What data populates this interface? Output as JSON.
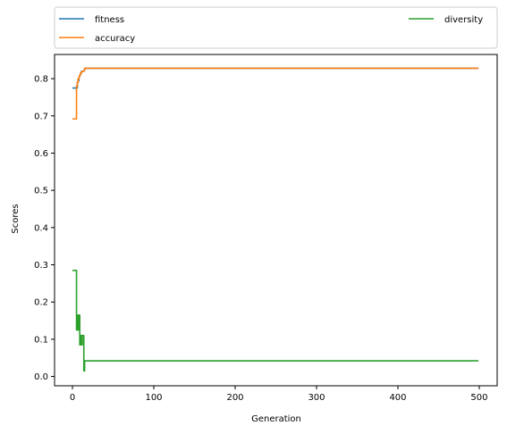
{
  "chart_data": {
    "type": "line",
    "title": "",
    "xlabel": "Generation",
    "ylabel": "Scores",
    "xlim": [
      -22,
      522
    ],
    "ylim": [
      -0.025,
      0.865
    ],
    "xticks": [
      0,
      100,
      200,
      300,
      400,
      500
    ],
    "yticks": [
      0.0,
      0.1,
      0.2,
      0.3,
      0.4,
      0.5,
      0.6,
      0.7,
      0.8
    ],
    "grid": false,
    "legend": {
      "placement": "top, outside above plot",
      "columns": 2
    },
    "series": [
      {
        "name": "fitness",
        "color": "#1f77b4",
        "x": [
          0,
          5,
          6,
          7,
          8,
          9,
          10,
          11,
          12,
          14,
          15,
          16,
          499
        ],
        "y": [
          0.775,
          0.775,
          0.79,
          0.795,
          0.805,
          0.81,
          0.815,
          0.82,
          0.82,
          0.822,
          0.828,
          0.828,
          0.828
        ]
      },
      {
        "name": "accuracy",
        "color": "#ff7f0e",
        "x": [
          0,
          4,
          5,
          6,
          7,
          8,
          9,
          10,
          11,
          12,
          14,
          15,
          16,
          499
        ],
        "y": [
          0.692,
          0.692,
          0.78,
          0.79,
          0.8,
          0.805,
          0.81,
          0.815,
          0.818,
          0.82,
          0.822,
          0.828,
          0.828,
          0.828
        ]
      },
      {
        "name": "diversity",
        "color": "#2ca02c",
        "x": [
          0,
          4,
          5,
          6,
          7,
          8,
          9,
          10,
          11,
          12,
          13,
          14,
          15,
          16,
          17,
          499
        ],
        "y": [
          0.285,
          0.285,
          0.125,
          0.165,
          0.125,
          0.165,
          0.085,
          0.11,
          0.085,
          0.11,
          0.11,
          0.015,
          0.042,
          0.042,
          0.042,
          0.042
        ]
      }
    ]
  }
}
